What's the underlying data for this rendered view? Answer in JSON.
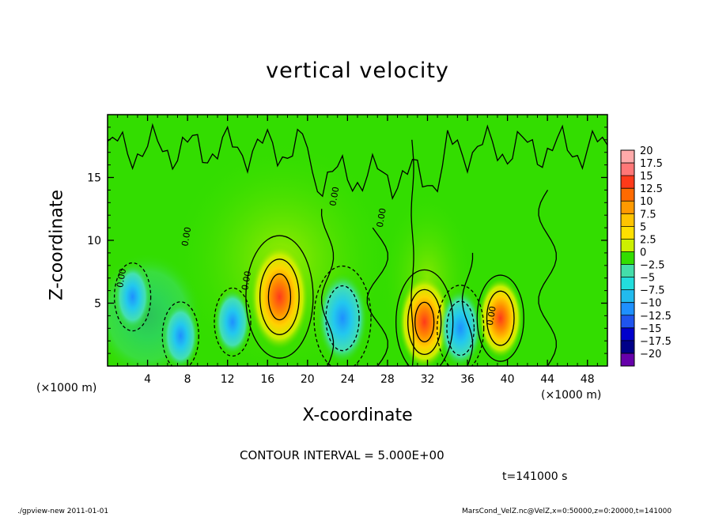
{
  "chart_data": {
    "type": "heatmap",
    "title": "vertical velocity",
    "xlabel": "X-coordinate",
    "ylabel": "Z-coordinate",
    "x_unit": "(×1000 m)",
    "xlim": [
      0,
      50
    ],
    "ylim": [
      0,
      20
    ],
    "x_ticks": [
      4,
      8,
      12,
      16,
      20,
      24,
      28,
      32,
      36,
      40,
      44,
      48
    ],
    "y_ticks": [
      5,
      10,
      15
    ],
    "contour_label": "0.00",
    "colorbar": {
      "labels": [
        "20",
        "17.5",
        "15",
        "12.5",
        "10",
        "7.5",
        "5",
        "2.5",
        "0",
        "−2.5",
        "−5",
        "−7.5",
        "−10",
        "−12.5",
        "−15",
        "−17.5",
        "−20"
      ],
      "colors": [
        "#ffaaaa",
        "#ff7777",
        "#ff3a1a",
        "#ff6a00",
        "#ff9a00",
        "#ffc400",
        "#ffe000",
        "#ccf000",
        "#33dd00",
        "#44ddaa",
        "#22dddd",
        "#22bbee",
        "#1e90ff",
        "#1f55ee",
        "#0000cc",
        "#000088",
        "#6600aa"
      ]
    },
    "features": [
      {
        "kind": "updraft",
        "x": 17.2,
        "z": 5.5,
        "peak": 12.5
      },
      {
        "kind": "updraft",
        "x": 31.7,
        "z": 3.5,
        "peak": 10
      },
      {
        "kind": "updraft",
        "x": 39.3,
        "z": 3.8,
        "peak": 7.5
      },
      {
        "kind": "downdraft",
        "x": 23.5,
        "z": 3.8,
        "peak": -10
      },
      {
        "kind": "downdraft",
        "x": 35.3,
        "z": 3.0,
        "peak": -7.5
      },
      {
        "kind": "downdraft",
        "x": 12.5,
        "z": 3.5,
        "peak": -5
      },
      {
        "kind": "downdraft",
        "x": 2.5,
        "z": 5.5,
        "peak": -5
      },
      {
        "kind": "downdraft",
        "x": 7.3,
        "z": 2.4,
        "peak": -5
      }
    ]
  },
  "contour_interval_text": "CONTOUR INTERVAL = 5.000E+00",
  "time_text": "t=141000 s",
  "footer_left": "./gpview-new   2011-01-01",
  "footer_right": "MarsCond_VelZ.nc@VelZ,x=0:50000,z=0:20000,t=141000"
}
